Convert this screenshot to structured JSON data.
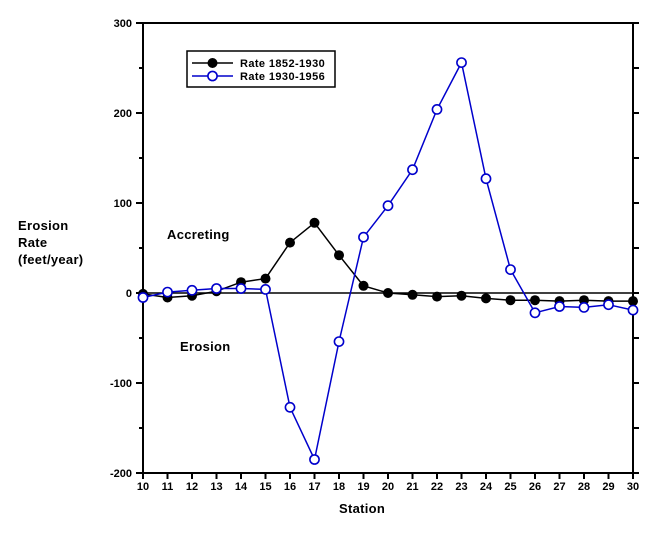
{
  "chart_data": {
    "type": "line",
    "title": "",
    "xlabel": "Station",
    "ylabel": "Erosion Rate (feet/year)",
    "ylabel_lines": [
      "Erosion",
      "Rate",
      "(feet/year)"
    ],
    "annotations": [
      {
        "id": "accreting",
        "text": "Accreting"
      },
      {
        "id": "erosion",
        "text": "Erosion"
      }
    ],
    "x": [
      10,
      11,
      12,
      13,
      14,
      15,
      16,
      17,
      18,
      19,
      20,
      21,
      22,
      23,
      24,
      25,
      26,
      27,
      28,
      29,
      30
    ],
    "series": [
      {
        "name": "Rate 1852-1930",
        "color": "#000000",
        "marker": "filled-circle",
        "values": [
          -1,
          -5,
          -3,
          2,
          12,
          16,
          56,
          78,
          42,
          8,
          0,
          -2,
          -4,
          -3,
          -6,
          -8,
          -8,
          -9,
          -8,
          -9,
          -9
        ]
      },
      {
        "name": "Rate 1930-1956",
        "color": "#0000cc",
        "marker": "open-circle",
        "values": [
          -5,
          1,
          3,
          5,
          5,
          4,
          -127,
          -185,
          -54,
          62,
          97,
          137,
          204,
          256,
          127,
          26,
          -22,
          -15,
          -16,
          -13,
          -19
        ]
      }
    ],
    "xlim": [
      10,
      30
    ],
    "ylim": [
      -200,
      300
    ],
    "y_major_ticks": [
      300,
      200,
      100,
      0,
      -100,
      -200
    ],
    "y_tick_labels": [
      "300",
      "200",
      "100",
      "0",
      "-100",
      "-200"
    ],
    "y_minor_step": 50,
    "x_ticks": [
      10,
      11,
      12,
      13,
      14,
      15,
      16,
      17,
      18,
      19,
      20,
      21,
      22,
      23,
      24,
      25,
      26,
      27,
      28,
      29,
      30
    ],
    "legend": {
      "position": "top-left-inside"
    },
    "grid": false,
    "zero_line": true,
    "colors": {
      "frame": "#000000",
      "background": "#ffffff",
      "series1": "#000000",
      "series2": "#0000cc"
    }
  }
}
